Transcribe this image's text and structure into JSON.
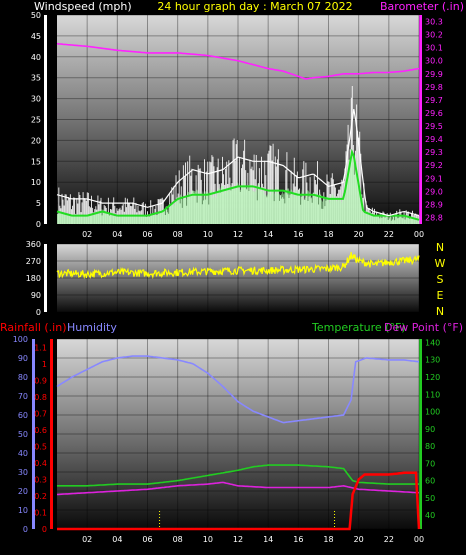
{
  "header": {
    "left_label": "Windspeed (mph)",
    "title": "24 hour graph day : March 07 2022",
    "right_label": "Barometer (.in)"
  },
  "dir_letters": [
    "N",
    "W",
    "S",
    "E",
    "N"
  ],
  "bottom_labels": {
    "rainfall": "Rainfall (.in)",
    "humidity": "Humidity",
    "temperature": "Temperature (°F)",
    "dewpoint": "Dew Point (°F)"
  },
  "colors": {
    "bg": "#000000",
    "wind": "#ffffff",
    "gust": "#22dd22",
    "barometer": "#ff22ff",
    "direction": "#ffff00",
    "rain": "#ff0000",
    "humidity": "#8888ff",
    "temperature": "#22cc22",
    "dewpoint": "#dd22dd",
    "axis_text": "#ffffff",
    "tick_text_left": "#8888ff",
    "tick_text_right": "#22cc22",
    "header_title": "#ffff00"
  },
  "chart_data": [
    {
      "type": "line",
      "name": "wind-barometer",
      "x_ticks": [
        "02",
        "04",
        "06",
        "08",
        "10",
        "12",
        "14",
        "16",
        "18",
        "20",
        "22",
        "00"
      ],
      "y_left_ticks": [
        0,
        5,
        10,
        15,
        20,
        25,
        30,
        35,
        40,
        45,
        50
      ],
      "y_left_range": [
        0,
        50
      ],
      "y_right_ticks": [
        28.8,
        28.9,
        29.0,
        29.1,
        29.2,
        29.3,
        29.4,
        29.5,
        29.6,
        29.7,
        29.8,
        29.9,
        30.0,
        30.1,
        30.2,
        30.3
      ],
      "y_right_range": [
        28.75,
        30.35
      ],
      "series": [
        {
          "axis": "right",
          "hours": [
            0,
            2,
            4,
            6,
            7,
            8,
            9,
            10,
            11,
            12,
            13,
            14,
            15,
            16,
            16.5,
            17,
            18,
            19,
            19.5,
            20,
            21,
            22,
            23,
            24
          ],
          "values": [
            30.13,
            30.11,
            30.08,
            30.06,
            30.06,
            30.06,
            30.05,
            30.04,
            30.02,
            30.0,
            29.97,
            29.94,
            29.92,
            29.88,
            29.86,
            29.87,
            29.88,
            29.9,
            29.9,
            29.9,
            29.91,
            29.91,
            29.92,
            29.94
          ]
        },
        {
          "axis": "left",
          "hours": [
            0,
            1,
            2,
            3,
            4,
            5,
            6,
            7,
            8,
            9,
            10,
            11,
            12,
            13,
            14,
            15,
            16,
            17,
            18,
            19,
            19.7,
            20.5,
            21,
            22,
            23,
            24
          ],
          "values": [
            7,
            6,
            6,
            5,
            5,
            5,
            4,
            5,
            10,
            13,
            12,
            13,
            16,
            15,
            15,
            14,
            11,
            12,
            9,
            10,
            28,
            4,
            3,
            2,
            3,
            2
          ]
        },
        {
          "axis": "left",
          "hours": [
            0,
            1,
            2,
            3,
            4,
            5,
            6,
            7,
            8,
            9,
            10,
            11,
            12,
            13,
            14,
            15,
            16,
            17,
            18,
            19,
            19.6,
            20.3,
            21,
            22,
            23,
            24
          ],
          "values": [
            3,
            2,
            2,
            3,
            2,
            2,
            2,
            3,
            6,
            7,
            7,
            8,
            9,
            9,
            8,
            8,
            7,
            7,
            6,
            6,
            18,
            3,
            2,
            2,
            2,
            1
          ]
        }
      ]
    },
    {
      "type": "line",
      "name": "wind-direction",
      "x_ticks": [
        "02",
        "04",
        "06",
        "08",
        "10",
        "12",
        "14",
        "16",
        "18",
        "20",
        "22",
        "00"
      ],
      "y_ticks": [
        0,
        90,
        180,
        270,
        360
      ],
      "y_range": [
        0,
        360
      ],
      "series": [
        {
          "hours": [
            0,
            2,
            4,
            6,
            8,
            10,
            12,
            14,
            16,
            18,
            19,
            19.5,
            20,
            21,
            22,
            23,
            24
          ],
          "values": [
            205,
            200,
            210,
            205,
            210,
            215,
            220,
            220,
            225,
            230,
            240,
            300,
            270,
            250,
            265,
            270,
            280
          ]
        }
      ]
    },
    {
      "type": "line",
      "name": "rain-humidity-temperature",
      "x_ticks": [
        "02",
        "04",
        "06",
        "08",
        "10",
        "12",
        "14",
        "16",
        "18",
        "20",
        "22",
        "00"
      ],
      "y_left_ticks": [
        0,
        10,
        20,
        30,
        40,
        50,
        60,
        70,
        80,
        90,
        100
      ],
      "y_left_range": [
        0,
        100
      ],
      "y_rain_ticks": [
        0,
        0.1,
        0.2,
        0.3,
        0.4,
        0.5,
        0.6,
        0.7,
        0.8,
        0.9,
        1,
        1.1
      ],
      "y_rain_range": [
        0,
        1.15
      ],
      "y_right_ticks": [
        40,
        50,
        60,
        70,
        80,
        90,
        100,
        110,
        120,
        130,
        140
      ],
      "y_right_range": [
        32,
        142
      ],
      "series": [
        {
          "axis": "left",
          "hours": [
            0,
            1,
            2,
            3,
            4,
            5,
            6,
            7,
            8,
            9,
            10,
            11,
            12,
            13,
            14,
            15,
            16,
            17,
            18,
            19,
            19.5,
            19.8,
            20.5,
            22,
            23,
            24
          ],
          "values": [
            75,
            80,
            84,
            88,
            90,
            91,
            91,
            90,
            89,
            87,
            82,
            75,
            67,
            62,
            59,
            56,
            57,
            58,
            59,
            60,
            68,
            88,
            90,
            89,
            89,
            88
          ]
        },
        {
          "axis": "right",
          "hours": [
            0,
            2,
            4,
            6,
            8,
            10,
            12,
            13,
            14,
            16,
            18,
            19,
            19.6,
            20,
            22,
            24
          ],
          "values": [
            57,
            57,
            58,
            58,
            60,
            63,
            66,
            68,
            69,
            69,
            68,
            67,
            60,
            59,
            58,
            58
          ]
        },
        {
          "axis": "right",
          "hours": [
            0,
            2,
            4,
            6,
            8,
            10,
            11,
            12,
            14,
            16,
            18,
            19,
            20,
            22,
            24
          ],
          "values": [
            52,
            53,
            54,
            55,
            57,
            58,
            59,
            57,
            56,
            56,
            56,
            57,
            55,
            54,
            53
          ]
        },
        {
          "axis": "rain",
          "hours": [
            0,
            19.4,
            19.6,
            20,
            20.4,
            21,
            22,
            23,
            23.8,
            24
          ],
          "values": [
            0,
            0,
            0.21,
            0.3,
            0.33,
            0.33,
            0.33,
            0.34,
            0.34,
            0
          ]
        }
      ]
    }
  ]
}
